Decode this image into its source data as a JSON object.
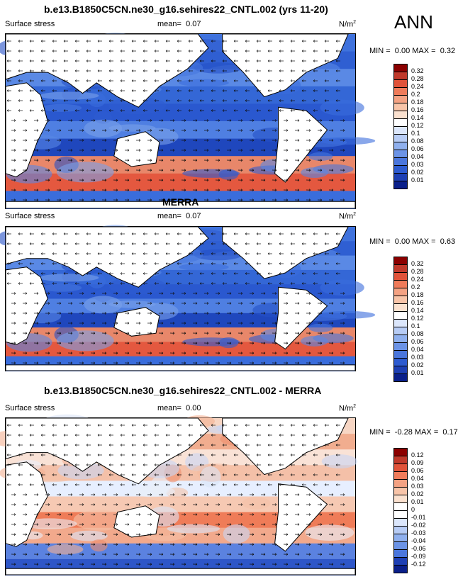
{
  "season": "ANN",
  "colors": {
    "ocean_base": "#3d6fdc",
    "land": "#ffffff",
    "coast": "#000000",
    "arrow": "#111111"
  },
  "panels": [
    {
      "id": "model",
      "title": "b.e13.B1850C5CN.ne30_g16.sehires22_CNTL.002 (yrs 11-20)",
      "variable": "Surface stress",
      "mean_label": "mean=",
      "mean_value": "0.07",
      "units_base": "N/m",
      "units_exp": "2",
      "min_label": "MIN =",
      "min_value": "0.00",
      "max_label": "MAX =",
      "max_value": "0.32",
      "colorbar": {
        "levels": [
          "0.32",
          "0.28",
          "0.24",
          "0.2",
          "0.18",
          "0.16",
          "0.14",
          "0.12",
          "0.1",
          "0.08",
          "0.06",
          "0.04",
          "0.03",
          "0.02",
          "0.01"
        ],
        "colors": [
          "#8b0000",
          "#c0392b",
          "#e0533a",
          "#ef7b5a",
          "#f4a283",
          "#f8c4a8",
          "#fbe1cf",
          "#ffffff",
          "#dbe6fb",
          "#b7ccf5",
          "#8fb0ee",
          "#6b93e6",
          "#4a76dc",
          "#2d5bd0",
          "#1d3fb3",
          "#0a1f8a"
        ]
      }
    },
    {
      "id": "obs",
      "title": "MERRA",
      "variable": "Surface stress",
      "mean_label": "mean=",
      "mean_value": "0.07",
      "units_base": "N/m",
      "units_exp": "2",
      "min_label": "MIN =",
      "min_value": "0.00",
      "max_label": "MAX =",
      "max_value": "0.63",
      "colorbar": {
        "levels": [
          "0.32",
          "0.28",
          "0.24",
          "0.2",
          "0.18",
          "0.16",
          "0.14",
          "0.12",
          "0.1",
          "0.08",
          "0.06",
          "0.04",
          "0.03",
          "0.02",
          "0.01"
        ],
        "colors": [
          "#8b0000",
          "#c0392b",
          "#e0533a",
          "#ef7b5a",
          "#f4a283",
          "#f8c4a8",
          "#fbe1cf",
          "#ffffff",
          "#dbe6fb",
          "#b7ccf5",
          "#8fb0ee",
          "#6b93e6",
          "#4a76dc",
          "#2d5bd0",
          "#1d3fb3",
          "#0a1f8a"
        ]
      }
    },
    {
      "id": "diff",
      "title": "b.e13.B1850C5CN.ne30_g16.sehires22_CNTL.002 - MERRA",
      "variable": "Surface stress",
      "mean_label": "mean=",
      "mean_value": "0.00",
      "units_base": "N/m",
      "units_exp": "2",
      "min_label": "MIN =",
      "min_value": "-0.28",
      "max_label": "MAX =",
      "max_value": "0.17",
      "colorbar": {
        "levels": [
          "0.12",
          "0.09",
          "0.06",
          "0.04",
          "0.03",
          "0.02",
          "0.01",
          "0",
          "-0.01",
          "-0.02",
          "-0.03",
          "-0.04",
          "-0.06",
          "-0.09",
          "-0.12"
        ],
        "colors": [
          "#8b0000",
          "#c0392b",
          "#e0533a",
          "#ef7b5a",
          "#f4a283",
          "#f8c4a8",
          "#fbe1cf",
          "#ffffff",
          "#ffffff",
          "#dbe6fb",
          "#b7ccf5",
          "#8fb0ee",
          "#6b93e6",
          "#4a76dc",
          "#1d3fb3",
          "#0a1f8a"
        ]
      }
    }
  ],
  "chart_data": [
    {
      "type": "heatmap",
      "title": "b.e13.B1850C5CN.ne30_g16.sehires22_CNTL.002 (yrs 11-20)",
      "subtitle": "Surface stress",
      "units": "N/m2",
      "mean": 0.07,
      "min": 0.0,
      "max": 0.32,
      "colorbar_levels": [
        0.01,
        0.02,
        0.03,
        0.04,
        0.06,
        0.08,
        0.1,
        0.12,
        0.14,
        0.16,
        0.18,
        0.2,
        0.24,
        0.28,
        0.32
      ],
      "legend": "right"
    },
    {
      "type": "heatmap",
      "title": "MERRA",
      "subtitle": "Surface stress",
      "units": "N/m2",
      "mean": 0.07,
      "min": 0.0,
      "max": 0.63,
      "colorbar_levels": [
        0.01,
        0.02,
        0.03,
        0.04,
        0.06,
        0.08,
        0.1,
        0.12,
        0.14,
        0.16,
        0.18,
        0.2,
        0.24,
        0.28,
        0.32
      ],
      "legend": "right"
    },
    {
      "type": "heatmap",
      "title": "b.e13.B1850C5CN.ne30_g16.sehires22_CNTL.002 - MERRA",
      "subtitle": "Surface stress",
      "units": "N/m2",
      "mean": 0.0,
      "min": -0.28,
      "max": 0.17,
      "colorbar_levels": [
        -0.12,
        -0.09,
        -0.06,
        -0.04,
        -0.03,
        -0.02,
        -0.01,
        0,
        0.01,
        0.02,
        0.03,
        0.04,
        0.06,
        0.09,
        0.12
      ],
      "legend": "right"
    }
  ]
}
